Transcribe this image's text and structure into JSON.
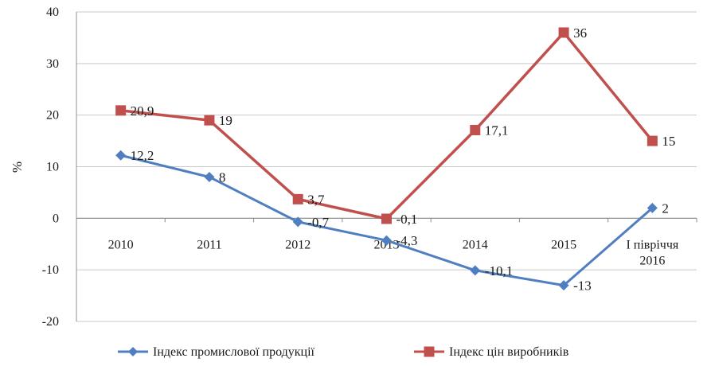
{
  "chart_data": {
    "type": "line",
    "title": "",
    "xlabel": "",
    "ylabel": "%",
    "ylim": [
      -20,
      40
    ],
    "yticks": [
      -20,
      -10,
      0,
      10,
      20,
      30,
      40
    ],
    "grid": true,
    "legend_position": "bottom",
    "categories": [
      [
        "2010"
      ],
      [
        "2011"
      ],
      [
        "2012"
      ],
      [
        "2013"
      ],
      [
        "2014"
      ],
      [
        "2015"
      ],
      [
        "І півріччя",
        "2016"
      ]
    ],
    "series": [
      {
        "name": "Індекс промислової продукції",
        "color": "#4f7fc0",
        "marker": "diamond",
        "values": [
          12.2,
          8,
          -0.7,
          -4.3,
          -10.1,
          -13,
          2
        ],
        "labels": [
          "12,2",
          "8",
          "-0,7",
          "-4,3",
          "-10,1",
          "-13",
          "2"
        ]
      },
      {
        "name": "Індекс цін виробників",
        "color": "#c0504d",
        "marker": "square",
        "values": [
          20.9,
          19,
          3.7,
          -0.1,
          17.1,
          36,
          15
        ],
        "labels": [
          "20,9",
          "19",
          "3,7",
          "-0,1",
          "17,1",
          "36",
          "15"
        ]
      }
    ]
  }
}
